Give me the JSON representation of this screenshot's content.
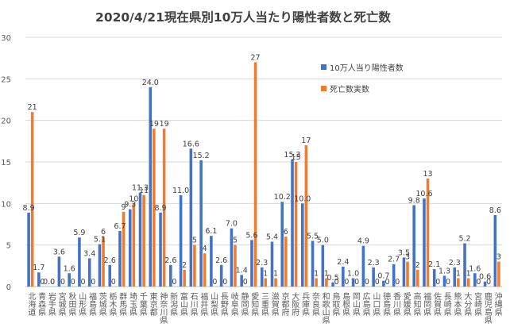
{
  "chart_data": {
    "type": "bar",
    "title": "2020/4/21現在県別10万人当たり陽性者数と死亡数",
    "ylim": [
      0,
      30
    ],
    "yticks": [
      0,
      5,
      10,
      15,
      20,
      25,
      30
    ],
    "grid": true,
    "legend_position": "right",
    "categories": [
      "北海道",
      "青森県",
      "岩手県",
      "宮城県",
      "秋田県",
      "山形県",
      "福島県",
      "茨城県",
      "栃木県",
      "群馬県",
      "埼玉県",
      "千葉県",
      "東京都",
      "神奈川県",
      "新潟県",
      "富山県",
      "石川県",
      "福井県",
      "山梨県",
      "長野県",
      "岐阜県",
      "静岡県",
      "愛知県",
      "三重県",
      "滋賀県",
      "京都府",
      "大阪府",
      "兵庫県",
      "奈良県",
      "和歌山県",
      "鳥取県",
      "島根県",
      "岡山県",
      "広島県",
      "山口県",
      "徳島県",
      "香川県",
      "愛媛県",
      "高知県",
      "福岡県",
      "佐賀県",
      "長崎県",
      "熊本県",
      "大分県",
      "宮崎県",
      "鹿児島県",
      "沖縄県"
    ],
    "series": [
      {
        "name": "10万人当り陽性者数",
        "color": "#4472C4",
        "values": [
          8.9,
          1.7,
          0.0,
          3.6,
          1.6,
          5.9,
          3.4,
          5.1,
          2.6,
          6.7,
          9.3,
          11.3,
          24.0,
          8.9,
          2.6,
          11.0,
          16.6,
          15.2,
          6.1,
          2.6,
          7.0,
          1.4,
          5.6,
          2.3,
          5.4,
          10.2,
          15.3,
          10.0,
          5.5,
          5.0,
          0.5,
          2.4,
          1.0,
          4.9,
          2.3,
          0.7,
          2.7,
          3.5,
          9.8,
          10.6,
          2.1,
          1.3,
          2.3,
          5.2,
          1.6,
          0.6,
          8.6
        ],
        "labels": [
          "8.9",
          "1.7",
          "0.0",
          "3.6",
          "1.6",
          "5.9",
          "3.4",
          "5.1",
          "2.6",
          "6.7",
          "9.3",
          "11.3",
          "24.0",
          "8.9",
          "2.6",
          "11.0",
          "16.6",
          "15.2",
          "6.1",
          "2.6",
          "7.0",
          "1.4",
          "5.6",
          "2.3",
          "5.4",
          "10.2",
          "15.3",
          "10.0",
          "5.5",
          "5.0",
          "0.5",
          "2.4",
          "1.0",
          "4.9",
          "2.3",
          "0.7",
          "2.7",
          "3.5",
          "9.8",
          "10.6",
          "2.1",
          "1.3",
          "2.3",
          "5.2",
          "1.6",
          "0.6",
          "8.6"
        ]
      },
      {
        "name": "死亡数実数",
        "color": "#ED7D31",
        "values": [
          21,
          0,
          0,
          0,
          0,
          0,
          0,
          6,
          0,
          9,
          10,
          11,
          19,
          19,
          0,
          2,
          5,
          4,
          0,
          0,
          5,
          0,
          27,
          1,
          1,
          6,
          15,
          17,
          1,
          1,
          0,
          0,
          0,
          0,
          0,
          0,
          0,
          3,
          2,
          13,
          0,
          0,
          1,
          1,
          0,
          0,
          3
        ],
        "labels": [
          "21",
          "0",
          "0",
          "0",
          "0",
          "0",
          "0",
          "6",
          "0",
          "9",
          "10",
          "11",
          "19",
          "19",
          "0",
          "2",
          "5",
          "4",
          "0",
          "0",
          "5",
          "0",
          "27",
          "1",
          "1",
          "6",
          "15",
          "17",
          "1",
          "1",
          "0",
          "0",
          "0",
          "0",
          "0",
          "0",
          "0",
          "3",
          "2",
          "13",
          "0",
          "0",
          "1",
          "1",
          "0",
          "0",
          "3"
        ]
      }
    ]
  }
}
